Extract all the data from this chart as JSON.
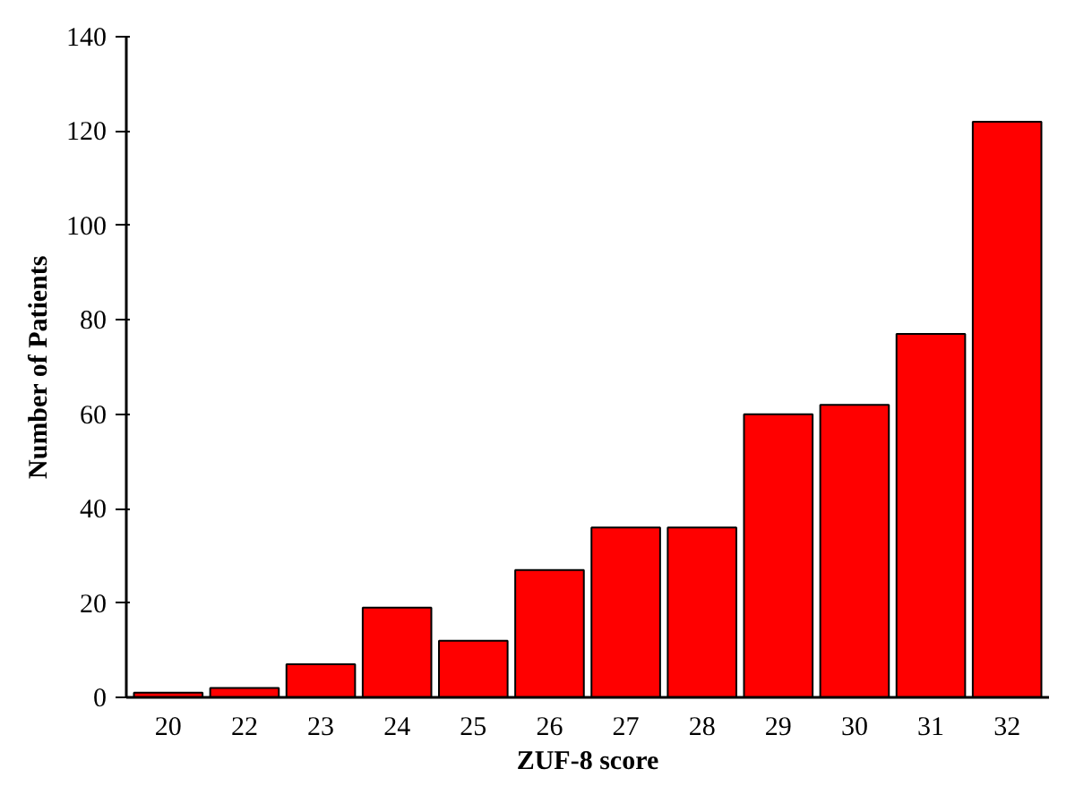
{
  "chart_data": {
    "type": "bar",
    "xlabel": "ZUF-8 score",
    "ylabel": "Number of Patients",
    "categories": [
      "20",
      "22",
      "23",
      "24",
      "25",
      "26",
      "27",
      "28",
      "29",
      "30",
      "31",
      "32"
    ],
    "values": [
      1,
      2,
      7,
      19,
      12,
      27,
      36,
      36,
      60,
      62,
      77,
      122
    ],
    "color": "#ff0000",
    "ylim": [
      0,
      140
    ],
    "yticks": [
      0,
      20,
      40,
      60,
      80,
      100,
      120,
      140
    ],
    "grid": false
  }
}
